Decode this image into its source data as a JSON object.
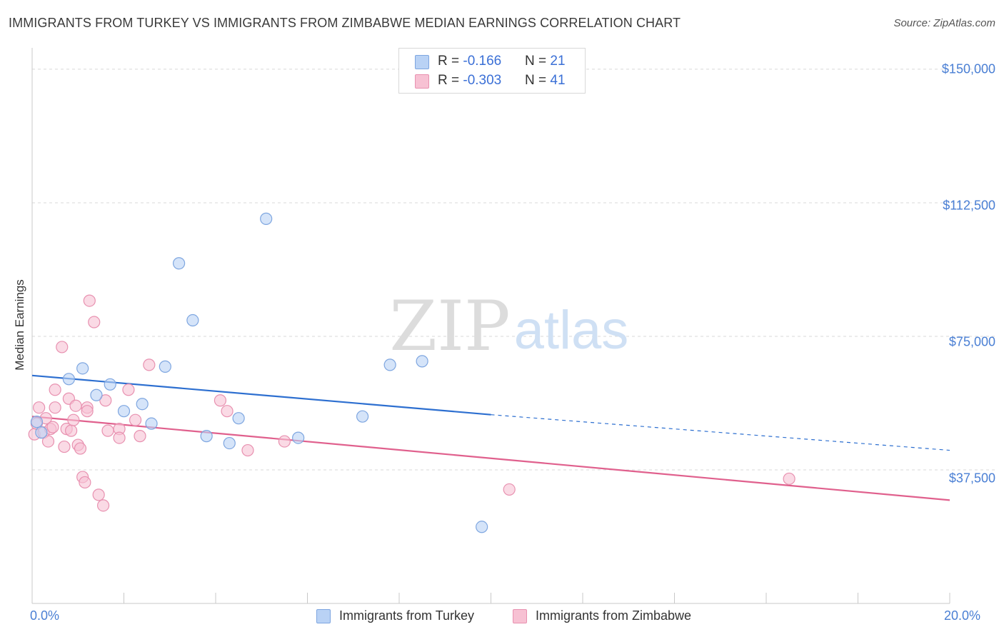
{
  "title": "IMMIGRANTS FROM TURKEY VS IMMIGRANTS FROM ZIMBABWE MEDIAN EARNINGS CORRELATION CHART",
  "source": "Source: ZipAtlas.com",
  "colors": {
    "turkey_fill": "#b9d2f5",
    "turkey_stroke": "#7ea6e0",
    "turkey_line": "#2d6fd0",
    "zimbabwe_fill": "#f7c1d3",
    "zimbabwe_stroke": "#e891b0",
    "zimbabwe_line": "#e0608d",
    "axis_text": "#4a7fd4",
    "grid": "#d9d9d9"
  },
  "legend": {
    "turkey": {
      "r_label": "R = ",
      "r_value": "-0.166",
      "n_label": "N = ",
      "n_value": "21"
    },
    "zimbabwe": {
      "r_label": "R = ",
      "r_value": "-0.303",
      "n_label": "N = ",
      "n_value": "41"
    }
  },
  "bottom_legend": {
    "turkey": "Immigrants from Turkey",
    "zimbabwe": "Immigrants from Zimbabwe"
  },
  "watermark": {
    "zip": "ZIP",
    "atlas": "atlas"
  },
  "chart_data": {
    "type": "scatter",
    "title": "IMMIGRANTS FROM TURKEY VS IMMIGRANTS FROM ZIMBABWE MEDIAN EARNINGS CORRELATION CHART",
    "xlabel": "",
    "ylabel": "Median Earnings",
    "xlim": [
      0,
      20
    ],
    "ylim": [
      0,
      155000
    ],
    "x_tick_labels": {
      "left": "0.0%",
      "right": "20.0%"
    },
    "y_ticks": [
      {
        "value": 150000,
        "label": "$150,000"
      },
      {
        "value": 112500,
        "label": "$112,500"
      },
      {
        "value": 75000,
        "label": "$75,000"
      },
      {
        "value": 37500,
        "label": "$37,500"
      }
    ],
    "series": [
      {
        "name": "Immigrants from Turkey",
        "R": -0.166,
        "N": 21,
        "points": [
          [
            0.2,
            48000
          ],
          [
            0.8,
            63000
          ],
          [
            1.1,
            66000
          ],
          [
            1.4,
            58500
          ],
          [
            1.7,
            61500
          ],
          [
            2.0,
            54000
          ],
          [
            2.4,
            56000
          ],
          [
            2.6,
            50500
          ],
          [
            2.9,
            66500
          ],
          [
            3.2,
            95500
          ],
          [
            3.5,
            79500
          ],
          [
            3.8,
            47000
          ],
          [
            4.3,
            45000
          ],
          [
            4.5,
            52000
          ],
          [
            5.1,
            108000
          ],
          [
            5.8,
            46500
          ],
          [
            7.2,
            52500
          ],
          [
            7.8,
            67000
          ],
          [
            8.5,
            68000
          ],
          [
            9.8,
            21500
          ],
          [
            0.1,
            51000
          ]
        ],
        "trend": {
          "x": [
            0,
            10
          ],
          "y": [
            64000,
            53000
          ],
          "dashed_to": [
            20,
            43000
          ]
        }
      },
      {
        "name": "Immigrants from Zimbabwe",
        "R": -0.303,
        "N": 41,
        "points": [
          [
            0.05,
            47500
          ],
          [
            0.1,
            50500
          ],
          [
            0.15,
            55000
          ],
          [
            0.25,
            48000
          ],
          [
            0.3,
            52000
          ],
          [
            0.35,
            45500
          ],
          [
            0.4,
            49000
          ],
          [
            0.45,
            49500
          ],
          [
            0.5,
            55000
          ],
          [
            0.5,
            60000
          ],
          [
            0.65,
            72000
          ],
          [
            0.7,
            44000
          ],
          [
            0.75,
            49000
          ],
          [
            0.8,
            57500
          ],
          [
            0.85,
            48500
          ],
          [
            0.9,
            51500
          ],
          [
            0.95,
            55500
          ],
          [
            1.0,
            44500
          ],
          [
            1.05,
            43500
          ],
          [
            1.1,
            35500
          ],
          [
            1.15,
            34000
          ],
          [
            1.2,
            55000
          ],
          [
            1.25,
            85000
          ],
          [
            1.35,
            79000
          ],
          [
            1.45,
            30500
          ],
          [
            1.55,
            27500
          ],
          [
            1.6,
            57000
          ],
          [
            1.65,
            48500
          ],
          [
            1.9,
            49000
          ],
          [
            1.9,
            46500
          ],
          [
            2.1,
            60000
          ],
          [
            2.25,
            51500
          ],
          [
            2.35,
            47000
          ],
          [
            2.55,
            67000
          ],
          [
            4.1,
            57000
          ],
          [
            4.25,
            54000
          ],
          [
            4.7,
            43000
          ],
          [
            5.5,
            45500
          ],
          [
            10.4,
            32000
          ],
          [
            16.5,
            35000
          ],
          [
            1.2,
            54000
          ]
        ],
        "trend": {
          "x": [
            0,
            20
          ],
          "y": [
            52500,
            29000
          ]
        }
      }
    ]
  }
}
